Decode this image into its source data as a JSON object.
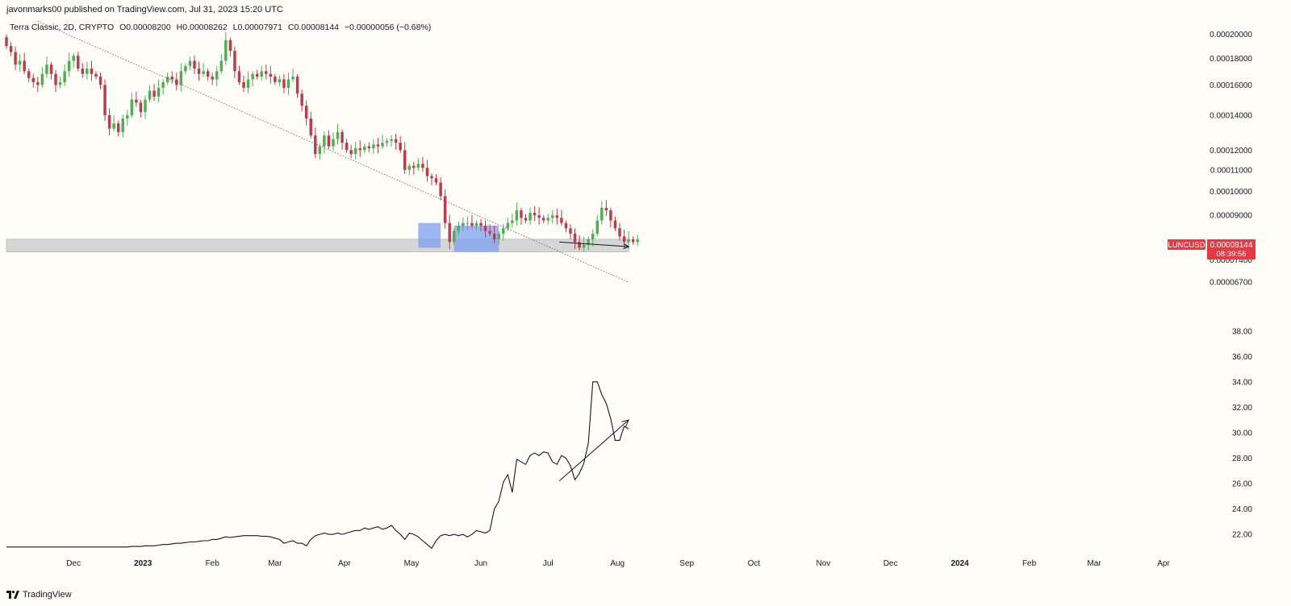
{
  "header": {
    "publisher_line": "javonmarks00 published on TradingView.com, Jul 31, 2023 15:20 UTC"
  },
  "legend": {
    "symbol_text": "Terra Classic, 2D, CRYPTO",
    "open": "O0.00008200",
    "high": "H0.00008262",
    "low": "L0.00007971",
    "close": "C0.00008144",
    "change": "−0.00000056 (−0.68%)"
  },
  "price_badge": {
    "ticker": "LUNCUSD",
    "price": "0.00008144",
    "countdown": "08:39:56",
    "color": "#e53945"
  },
  "footer": {
    "brand": "TradingView"
  },
  "colors": {
    "up": "#4caf50",
    "down": "#c0394b",
    "zone": "#d6d6d6",
    "blue_box": "#7c9ff0",
    "line": "#131722"
  },
  "chart_data": [
    {
      "type": "candlestick",
      "title": "Terra Classic, 2D, CRYPTO",
      "scale": "log",
      "ylim": [
        6.2e-05,
        0.000213
      ],
      "y_ticks": [
        "0.00020000",
        "0.00018000",
        "0.00016000",
        "0.00014000",
        "0.00012000",
        "0.00011000",
        "0.00010000",
        "0.00009000",
        "0.00007400",
        "0.00006700"
      ],
      "x_ticks": [
        "Dec",
        "2023",
        "Feb",
        "Mar",
        "Apr",
        "May",
        "Jun",
        "Jul",
        "Aug",
        "Sep",
        "Oct",
        "Nov",
        "Dec",
        "2024",
        "Feb",
        "Mar",
        "Apr"
      ],
      "x_tick_dates": [
        "2022-12-01",
        "2023-01-01",
        "2023-02-01",
        "2023-03-01",
        "2023-04-01",
        "2023-05-01",
        "2023-06-01",
        "2023-07-01",
        "2023-08-01",
        "2023-09-01",
        "2023-10-01",
        "2023-11-01",
        "2023-12-01",
        "2024-01-01",
        "2024-02-01",
        "2024-03-01",
        "2024-04-01"
      ],
      "interval_days": 2,
      "first_candle_date": "2022-11-01",
      "closes": [
        0.00019,
        0.000185,
        0.000175,
        0.000178,
        0.00017,
        0.000165,
        0.000162,
        0.00016,
        0.000168,
        0.000175,
        0.000168,
        0.00016,
        0.000162,
        0.00017,
        0.000178,
        0.000182,
        0.000172,
        0.000168,
        0.000172,
        0.000168,
        0.000166,
        0.00016,
        0.00014,
        0.000132,
        0.000135,
        0.00013,
        0.000138,
        0.00014,
        0.00015,
        0.000148,
        0.000142,
        0.00015,
        0.000156,
        0.000152,
        0.000158,
        0.000162,
        0.000166,
        0.000164,
        0.00016,
        0.00017,
        0.000174,
        0.000178,
        0.000172,
        0.000168,
        0.00017,
        0.000166,
        0.000164,
        0.00017,
        0.000178,
        0.000195,
        0.000186,
        0.00017,
        0.000162,
        0.000158,
        0.000164,
        0.000168,
        0.000166,
        0.00017,
        0.000168,
        0.000166,
        0.000162,
        0.000164,
        0.000158,
        0.000164,
        0.000166,
        0.000154,
        0.000146,
        0.000138,
        0.000128,
        0.000118,
        0.000122,
        0.000128,
        0.000122,
        0.000126,
        0.00013,
        0.000124,
        0.00012,
        0.000118,
        0.000121,
        0.00012,
        0.000122,
        0.000121,
        0.000123,
        0.000122,
        0.000124,
        0.000125,
        0.000126,
        0.000124,
        0.00012,
        0.00011,
        0.000112,
        0.000111,
        0.000113,
        0.000111,
        0.000107,
        0.000106,
        0.000104,
        9.8e-05,
        8.7e-05,
        8e-05,
        8.4e-05,
        8.6e-05,
        8.7e-05,
        8.7e-05,
        8.6e-05,
        8.7e-05,
        8.6e-05,
        8.4e-05,
        8.3e-05,
        8.1e-05,
        8.3e-05,
        8.5e-05,
        8.7e-05,
        8.8e-05,
        9.2e-05,
        8.9e-05,
        8.8e-05,
        9.1e-05,
        9e-05,
        8.9e-05,
        8.8e-05,
        8.9e-05,
        9e-05,
        8.9e-05,
        8.7e-05,
        8.5e-05,
        8.3e-05,
        8e-05,
        7.8e-05,
        7.9e-05,
        8.1e-05,
        8.3e-05,
        8.8e-05,
        9.3e-05,
        9.2e-05,
        8.8e-05,
        8.5e-05,
        8.2e-05,
        8e-05,
        8.1e-05,
        8e-05,
        8.1e-05
      ],
      "annotations": [
        {
          "kind": "dotted_trendline",
          "from": [
            "2022-11-15",
            0.000212
          ],
          "to": [
            "2023-08-06",
            6.7e-05
          ]
        },
        {
          "kind": "support_zone",
          "from_date": "2022-11-01",
          "to_date": "2023-08-06",
          "y_low": 7.66e-05,
          "y_high": 8.1e-05
        },
        {
          "kind": "highlight_box",
          "from_date": "2023-05-04",
          "to_date": "2023-05-14",
          "y_low": 7.8e-05,
          "y_high": 8.7e-05
        },
        {
          "kind": "highlight_box",
          "from_date": "2023-05-20",
          "to_date": "2023-06-09",
          "y_low": 7.66e-05,
          "y_high": 8.6e-05
        },
        {
          "kind": "arrow",
          "from": [
            "2023-07-06",
            8e-05
          ],
          "to": [
            "2023-08-06",
            7.84e-05
          ]
        }
      ]
    },
    {
      "type": "line",
      "ylim": [
        20.8,
        39.0
      ],
      "y_ticks": [
        "38.00",
        "36.00",
        "34.00",
        "32.00",
        "30.00",
        "28.00",
        "26.00",
        "24.00",
        "22.00"
      ],
      "x_start": "2022-11-01",
      "interval_days": 2,
      "values": [
        21.0,
        21.0,
        21.0,
        21.0,
        21.0,
        21.0,
        21.0,
        21.0,
        21.0,
        21.0,
        21.0,
        21.0,
        21.0,
        21.0,
        21.0,
        21.0,
        21.0,
        21.0,
        21.0,
        21.0,
        21.0,
        21.0,
        21.0,
        21.0,
        21.0,
        21.0,
        21.0,
        21.0,
        21.05,
        21.05,
        21.05,
        21.1,
        21.1,
        21.1,
        21.15,
        21.2,
        21.2,
        21.25,
        21.3,
        21.3,
        21.35,
        21.4,
        21.4,
        21.45,
        21.5,
        21.5,
        21.6,
        21.6,
        21.7,
        21.8,
        21.75,
        21.8,
        21.85,
        21.9,
        21.9,
        21.9,
        21.9,
        21.85,
        21.85,
        21.8,
        21.7,
        21.6,
        21.3,
        21.4,
        21.5,
        21.3,
        21.3,
        21.1,
        21.6,
        21.9,
        22.0,
        22.1,
        22.0,
        22.0,
        22.1,
        22.0,
        22.1,
        22.2,
        22.3,
        22.3,
        22.5,
        22.4,
        22.5,
        22.6,
        22.4,
        22.5,
        22.7,
        22.3,
        22.0,
        21.6,
        22.1,
        22.0,
        21.8,
        21.5,
        21.2,
        20.9,
        21.5,
        21.9,
        22.0,
        21.9,
        22.0,
        21.9,
        22.0,
        21.8,
        22.0,
        22.3,
        22.2,
        22.1,
        22.3,
        24.0,
        24.6,
        26.1,
        26.7,
        25.3,
        27.9,
        27.7,
        27.5,
        28.2,
        28.4,
        28.2,
        28.5,
        28.4,
        27.7,
        27.5,
        28.2,
        28.0,
        27.4,
        26.3,
        26.8,
        27.6,
        29.2,
        34.0,
        34.0,
        33.0,
        32.3,
        31.1,
        29.4,
        29.4,
        30.5,
        30.3
      ],
      "annotations": [
        {
          "kind": "arrow",
          "from": [
            "2023-07-06",
            26.2
          ],
          "to": [
            "2023-08-06",
            31.0
          ]
        }
      ]
    }
  ]
}
